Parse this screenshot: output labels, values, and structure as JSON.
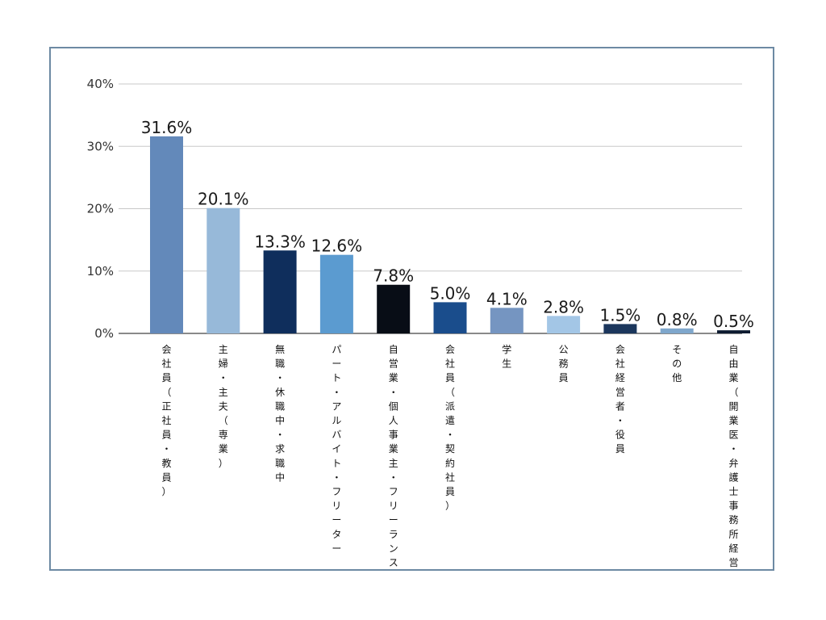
{
  "chart_data": {
    "type": "bar",
    "title": "",
    "xlabel": "",
    "ylabel": "",
    "ylim": [
      0,
      40
    ],
    "yticks": [
      0,
      10,
      20,
      30,
      40
    ],
    "ytick_labels": [
      "0%",
      "10%",
      "20%",
      "30%",
      "40%"
    ],
    "grid": "horizontal",
    "categories": [
      "会社員（正社員・教員）",
      "主婦・主夫（専業）",
      "無職・休職中・求職中",
      "パート・アルバイト・フリーター",
      "自営業・個人事業主・フリーランス",
      "会社員（派遣・契約社員）",
      "学生",
      "公務員",
      "会社経営者・役員",
      "その他",
      "自由業（開業医・弁護士事務所経営など）"
    ],
    "values": [
      31.6,
      20.1,
      13.3,
      12.6,
      7.8,
      5.0,
      4.1,
      2.8,
      1.5,
      0.8,
      0.5
    ],
    "value_labels": [
      "31.6%",
      "20.1%",
      "13.3%",
      "12.6%",
      "7.8%",
      "5.0%",
      "4.1%",
      "2.8%",
      "1.5%",
      "0.8%",
      "0.5%"
    ],
    "colors": [
      "#6389ba",
      "#97b9d9",
      "#0f2e5c",
      "#5b9bd0",
      "#080d16",
      "#1a4d8c",
      "#7595c1",
      "#a3c6e6",
      "#1b365c",
      "#7fa7cc",
      "#0d1b30"
    ]
  }
}
